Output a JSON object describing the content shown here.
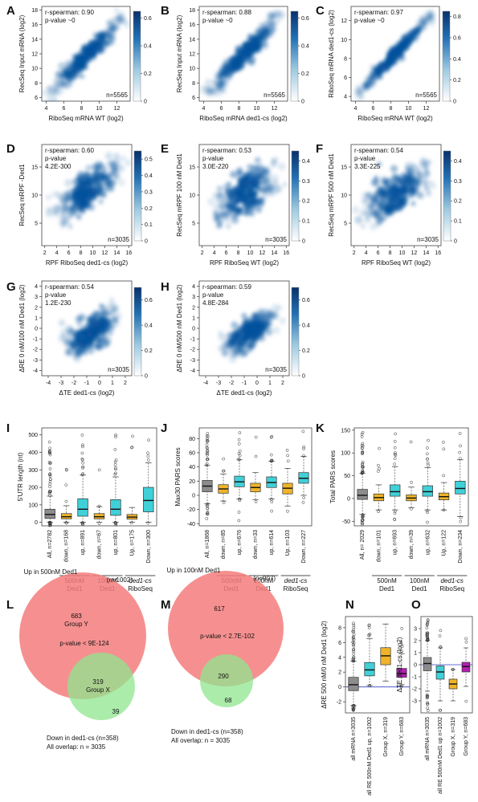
{
  "colors": {
    "density_low": "#ffffff",
    "density_high": "#08306b",
    "gray_box": "#8c8c8c",
    "orange_box": "#f0b429",
    "cyan_box": "#40d0d8",
    "magenta_box": "#b020b0",
    "venn_red": "#f47c7c",
    "venn_green": "#8fe68f",
    "group_label": "#2a3aa8",
    "ref_line": "#3040c0"
  },
  "chart_data": [
    {
      "panel": "A",
      "type": "heatmap",
      "xlabel": "RiboSeq mRNA",
      "xlabel_sub": "WT",
      "xlabel_suffix": "(log2)",
      "ylabel": "RecSeq Input mRNA (log2)",
      "xticks": [
        "4",
        "6",
        "8",
        "10",
        "12"
      ],
      "yticks": [
        "6",
        "8",
        "10",
        "12",
        "14",
        "16",
        "18"
      ],
      "xlim": [
        3.5,
        13.5
      ],
      "ylim": [
        5.5,
        18.5
      ],
      "annotation": [
        "r-spearman: 0.90",
        "p-value ~0"
      ],
      "n_label": "n=5565",
      "colorbar_ticks": [
        "0",
        "0.2",
        "0.4",
        "0.6"
      ],
      "colorbar_max": 0.65,
      "trend": {
        "x": [
          4.5,
          12.5
        ],
        "y": [
          6.5,
          17
        ],
        "spread": 0.9
      }
    },
    {
      "panel": "B",
      "type": "heatmap",
      "xlabel": "RiboSeq mRNA",
      "xlabel_sub": "ded1-cs",
      "xlabel_suffix": "(log2)",
      "ylabel": "RecSeq Input mRNA (log2)",
      "xticks": [
        "4",
        "6",
        "8",
        "10",
        "12"
      ],
      "yticks": [
        "6",
        "8",
        "10",
        "12",
        "14",
        "16",
        "18"
      ],
      "xlim": [
        3.5,
        13.5
      ],
      "ylim": [
        5.5,
        18.5
      ],
      "annotation": [
        "r-spearman: 0.88",
        "p-value ~0"
      ],
      "n_label": "n=5565",
      "colorbar_ticks": [
        "0",
        "0.2",
        "0.4",
        "0.6"
      ],
      "colorbar_max": 0.65,
      "trend": {
        "x": [
          4.5,
          12.5
        ],
        "y": [
          6.5,
          17
        ],
        "spread": 1.0
      }
    },
    {
      "panel": "C",
      "type": "heatmap",
      "xlabel": "RiboSeq mRNA",
      "xlabel_sub": "WT",
      "xlabel_suffix": "(log2)",
      "ylabel": "RiboSeq mRNA ded1-cs (log2)",
      "xticks": [
        "4",
        "6",
        "8",
        "10",
        "12"
      ],
      "yticks": [
        "4",
        "6",
        "8",
        "10",
        "12"
      ],
      "xlim": [
        3.5,
        13.5
      ],
      "ylim": [
        3.5,
        13.5
      ],
      "annotation": [
        "r-spearman: 0.97",
        "p-value ~0"
      ],
      "n_label": "n=5565",
      "colorbar_ticks": [
        "0",
        "0.2",
        "0.4",
        "0.6",
        "0.8"
      ],
      "colorbar_max": 0.85,
      "trend": {
        "x": [
          4.5,
          12.5
        ],
        "y": [
          4.5,
          12.5
        ],
        "spread": 0.45
      }
    },
    {
      "panel": "D",
      "type": "heatmap",
      "xlabel": "RPF RiboSeq ded1-cs (log2)",
      "ylabel": "RecSeq mRPF -Ded1",
      "xticks": [
        "2",
        "4",
        "6",
        "8",
        "10",
        "12",
        "14",
        "16"
      ],
      "yticks": [
        "5",
        "10",
        "15"
      ],
      "xlim": [
        1.5,
        16.5
      ],
      "ylim": [
        1,
        19
      ],
      "annotation": [
        "r-spearman: 0.60",
        "p-value",
        "4.2E-300"
      ],
      "n_label": "n=3035",
      "colorbar_ticks": [
        "0",
        "0.1",
        "0.2",
        "0.3",
        "0.4",
        "0.5"
      ],
      "colorbar_max": 0.55,
      "trend": {
        "x": [
          4,
          14
        ],
        "y": [
          7,
          14
        ],
        "spread": 2.6
      }
    },
    {
      "panel": "E",
      "type": "heatmap",
      "xlabel": "RPF RiboSeq WT (log2)",
      "ylabel": "RecSeq mRPF 100 nM Ded1",
      "xticks": [
        "2",
        "4",
        "6",
        "8",
        "10",
        "12",
        "14",
        "16"
      ],
      "yticks": [
        "5",
        "10",
        "15"
      ],
      "xlim": [
        1.5,
        16.5
      ],
      "ylim": [
        1,
        19
      ],
      "annotation": [
        "r-spearman: 0.53",
        "p-value",
        "3.0E-220"
      ],
      "n_label": "n=3035",
      "colorbar_ticks": [
        "0",
        "0.1",
        "0.2",
        "0.3",
        "0.4"
      ],
      "colorbar_max": 0.45,
      "trend": {
        "x": [
          4,
          14
        ],
        "y": [
          7,
          14
        ],
        "spread": 2.9
      }
    },
    {
      "panel": "F",
      "type": "heatmap",
      "xlabel": "RPF RiboSeq WT (log2)",
      "ylabel": "RecSeq mRPF 500 nM Ded1",
      "xticks": [
        "2",
        "4",
        "6",
        "8",
        "10",
        "12",
        "14",
        "16"
      ],
      "yticks": [
        "5",
        "10",
        "15"
      ],
      "xlim": [
        1.5,
        16.5
      ],
      "ylim": [
        1,
        19
      ],
      "annotation": [
        "r-spearman: 0.54",
        "p-value",
        "3.3E-225"
      ],
      "n_label": "n=3035",
      "colorbar_ticks": [
        "0",
        "0.1",
        "0.2",
        "0.3",
        "0.4"
      ],
      "colorbar_max": 0.45,
      "trend": {
        "x": [
          4,
          14
        ],
        "y": [
          7,
          14
        ],
        "spread": 2.9
      }
    },
    {
      "panel": "G",
      "type": "heatmap",
      "xlabel": "ΔTE ded1-cs (log2)",
      "ylabel": "ΔRE 0 nM/100 nM Ded1 (log2)",
      "xticks": [
        "-4",
        "-3",
        "-2",
        "-1",
        "0",
        "1",
        "2"
      ],
      "yticks": [
        "-4",
        "-3",
        "-2",
        "-1",
        "0",
        "1",
        "2",
        "3",
        "4"
      ],
      "xlim": [
        -4.5,
        2.5
      ],
      "ylim": [
        -4.5,
        4.5
      ],
      "annotation": [
        "r-spearman: 0.54",
        "p-value",
        "1.2E-230"
      ],
      "n_label": "n=3035",
      "colorbar_ticks": [
        "0",
        "0.2",
        "0.4",
        "0.6"
      ],
      "colorbar_max": 0.7,
      "trend": {
        "x": [
          -2.5,
          1.2
        ],
        "y": [
          -2,
          1.2
        ],
        "spread": 1.1
      }
    },
    {
      "panel": "H",
      "type": "heatmap",
      "xlabel": "ΔTE ded1-cs (log2)",
      "ylabel": "ΔRE 0 nM/500 nM Ded1 (log2)",
      "xticks": [
        "-4",
        "-3",
        "-2",
        "-1",
        "0",
        "1",
        "2"
      ],
      "yticks": [
        "-4",
        "-3",
        "-2",
        "-1",
        "0",
        "1",
        "2",
        "3",
        "4"
      ],
      "xlim": [
        -4.5,
        2.5
      ],
      "ylim": [
        -4.5,
        4.5
      ],
      "annotation": [
        "r-spearman: 0.59",
        "p-value",
        "4.8E-284"
      ],
      "n_label": "n=3035",
      "colorbar_ticks": [
        "0",
        "0.2",
        "0.4",
        "0.6"
      ],
      "colorbar_max": 0.7,
      "trend": {
        "x": [
          -2.5,
          1.2
        ],
        "y": [
          -2,
          1.2
        ],
        "spread": 1.0
      }
    },
    {
      "panel": "I",
      "type": "box",
      "ylabel": "5'UTR length (nt)",
      "ylim": [
        -20,
        540
      ],
      "yticks": [
        "0",
        "100",
        "200",
        "300",
        "400",
        "500"
      ],
      "boxes": [
        {
          "label": "All, n=2782",
          "color": "gray",
          "q1": 22,
          "med": 45,
          "q3": 75,
          "lo": 0,
          "hi": 150,
          "outliers": 40
        },
        {
          "label": "down, n=168",
          "color": "orange",
          "q1": 20,
          "med": 32,
          "q3": 50,
          "lo": 0,
          "hi": 95,
          "outliers": 6
        },
        {
          "label": "up, n=891",
          "color": "cyan",
          "q1": 35,
          "med": 75,
          "q3": 135,
          "lo": 0,
          "hi": 270,
          "outliers": 16
        },
        {
          "label": "down, n=67",
          "color": "orange",
          "q1": 20,
          "med": 32,
          "q3": 50,
          "lo": 0,
          "hi": 90,
          "outliers": 3
        },
        {
          "label": "up, n=801",
          "color": "cyan",
          "q1": 40,
          "med": 75,
          "q3": 130,
          "lo": 0,
          "hi": 260,
          "outliers": 15
        },
        {
          "label": "Up, n=175",
          "color": "orange",
          "q1": 18,
          "med": 30,
          "q3": 45,
          "lo": 0,
          "hi": 85,
          "outliers": 4
        },
        {
          "label": "Down, n=300",
          "color": "cyan",
          "q1": 60,
          "med": 125,
          "q3": 200,
          "lo": 0,
          "hi": 340,
          "outliers": 5
        }
      ],
      "groups": [
        {
          "line1": "500nM",
          "line2": "Ded1",
          "from": 1,
          "to": 2
        },
        {
          "line1": "100nM",
          "line2": "Ded1",
          "from": 3,
          "to": 4
        },
        {
          "line1": "ded1-cs",
          "line2": "RiboSeq",
          "from": 5,
          "to": 6
        }
      ]
    },
    {
      "panel": "J",
      "type": "box",
      "ylabel": "Max30 PARS scores",
      "ylim": [
        -43,
        95
      ],
      "yticks": [
        "-40",
        "-20",
        "0",
        "20",
        "40",
        "60",
        "80"
      ],
      "boxes": [
        {
          "label": "All, n=1868",
          "color": "gray",
          "q1": 5,
          "med": 13,
          "q3": 21,
          "lo": -12,
          "hi": 42,
          "outliers": 30
        },
        {
          "label": "down, n=85",
          "color": "orange",
          "q1": 3,
          "med": 9,
          "q3": 15,
          "lo": -8,
          "hi": 30,
          "outliers": 4
        },
        {
          "label": "up, n=676",
          "color": "cyan",
          "q1": 12,
          "med": 19,
          "q3": 27,
          "lo": -5,
          "hi": 50,
          "outliers": 12
        },
        {
          "label": "down, n=33",
          "color": "orange",
          "q1": 5,
          "med": 11,
          "q3": 17,
          "lo": -6,
          "hi": 32,
          "outliers": 3
        },
        {
          "label": "up, n=614",
          "color": "cyan",
          "q1": 11,
          "med": 18,
          "q3": 26,
          "lo": -5,
          "hi": 48,
          "outliers": 10
        },
        {
          "label": "Up, n=103",
          "color": "orange",
          "q1": 2,
          "med": 10,
          "q3": 17,
          "lo": -15,
          "hi": 38,
          "outliers": 4
        },
        {
          "label": "Down, n=227",
          "color": "cyan",
          "q1": 17,
          "med": 24,
          "q3": 32,
          "lo": 0,
          "hi": 55,
          "outliers": 6
        }
      ],
      "groups": [
        {
          "line1": "500nM",
          "line2": "Ded1",
          "from": 1,
          "to": 2
        },
        {
          "line1": "100nM",
          "line2": "Ded1",
          "from": 3,
          "to": 4
        },
        {
          "line1": "ded1-cs",
          "line2": "RiboSeq",
          "from": 5,
          "to": 6
        }
      ]
    },
    {
      "panel": "K",
      "type": "box",
      "ylabel": "Total PARS scores",
      "ylim": [
        -60,
        155
      ],
      "yticks": [
        "-50",
        "0",
        "50",
        "100",
        "150"
      ],
      "boxes": [
        {
          "label": "All, n= 2029",
          "color": "gray",
          "q1": -2,
          "med": 7,
          "q3": 20,
          "lo": -35,
          "hi": 55,
          "outliers": 40
        },
        {
          "label": "down, n=101",
          "color": "orange",
          "q1": -5,
          "med": 2,
          "q3": 10,
          "lo": -25,
          "hi": 30,
          "outliers": 5
        },
        {
          "label": "up, n=693",
          "color": "cyan",
          "q1": 5,
          "med": 15,
          "q3": 30,
          "lo": -25,
          "hi": 70,
          "outliers": 12
        },
        {
          "label": "down, n=39",
          "color": "orange",
          "q1": -5,
          "med": 1,
          "q3": 8,
          "lo": -20,
          "hi": 25,
          "outliers": 3
        },
        {
          "label": "up, n=632",
          "color": "cyan",
          "q1": 5,
          "med": 15,
          "q3": 28,
          "lo": -25,
          "hi": 68,
          "outliers": 10
        },
        {
          "label": "Up, n=122",
          "color": "orange",
          "q1": -3,
          "med": 4,
          "q3": 12,
          "lo": -25,
          "hi": 35,
          "outliers": 4
        },
        {
          "label": "Down, n=234",
          "color": "cyan",
          "q1": 10,
          "med": 22,
          "q3": 38,
          "lo": -40,
          "hi": 85,
          "outliers": 6
        }
      ],
      "groups": [
        {
          "line1": "500nM",
          "line2": "Ded1",
          "from": 1,
          "to": 2
        },
        {
          "line1": "100nM",
          "line2": "Ded1",
          "from": 3,
          "to": 4
        },
        {
          "line1": "ded1-cs",
          "line2": "RiboSeq",
          "from": 5,
          "to": 6
        }
      ]
    },
    {
      "panel": "L",
      "type": "venn",
      "top_label": "Up in 500nM Ded1",
      "top_n": "(n=1002)",
      "only_a": 683,
      "overlap": 319,
      "only_b": 39,
      "group_a_label": "Group Y",
      "group_b_label": "Group X",
      "pvalue": "p-value < 9E-124",
      "bottom_label": "Down in ded1-cs (n=358)",
      "all_overlap": "All overlap: n = 3035"
    },
    {
      "panel": "M",
      "type": "venn",
      "top_label": "Up in 100nM Ded1",
      "top_n": "(n=907)",
      "only_a": 617,
      "overlap": 290,
      "only_b": 68,
      "pvalue": "p-value < 2.7E-102",
      "bottom_label": "Down in ded1-cs (n=358)",
      "all_overlap": "All overlap: n = 3035"
    },
    {
      "panel": "N",
      "type": "box",
      "ylabel": "ΔRE 500 nM/0 nM Ded1 (log2)",
      "ylim": [
        -3.5,
        9.5
      ],
      "yticks": [
        "-2",
        "0",
        "2",
        "4",
        "6",
        "8"
      ],
      "hline": 0,
      "boxes": [
        {
          "label": "all mRNA n=3035",
          "color": "gray",
          "q1": -0.5,
          "med": 0.3,
          "q3": 1.3,
          "lo": -2.5,
          "hi": 3.5,
          "outliers": 40
        },
        {
          "label": "all RE 500nM Ded1 up, n=1002",
          "color": "cyan",
          "q1": 1.5,
          "med": 2.3,
          "q3": 3.3,
          "lo": 0.2,
          "hi": 6.5,
          "outliers": 8
        },
        {
          "label": "Group X, n=319",
          "color": "orange",
          "q1": 3.0,
          "med": 4.2,
          "q3": 5.3,
          "lo": 0.8,
          "hi": 8.5,
          "outliers": 0
        },
        {
          "label": "Group Y, n=683",
          "color": "magenta",
          "q1": 1.3,
          "med": 1.8,
          "q3": 2.5,
          "lo": 0.3,
          "hi": 4.5,
          "outliers": 6
        }
      ]
    },
    {
      "panel": "O",
      "type": "box",
      "ylabel": "ΔTE ded1-cs (log2)",
      "ylim": [
        -4,
        4
      ],
      "yticks": [
        "-3",
        "-2",
        "-1",
        "0",
        "1",
        "2",
        "3"
      ],
      "hline": 0,
      "boxes": [
        {
          "label": "all mRNA n=3035",
          "color": "gray",
          "q1": -0.5,
          "med": 0.1,
          "q3": 0.6,
          "lo": -2.2,
          "hi": 2.0,
          "outliers": 35
        },
        {
          "label": "all RE 500nM Ded1 up n=1002",
          "color": "cyan",
          "q1": -1.2,
          "med": -0.6,
          "q3": -0.1,
          "lo": -3.0,
          "hi": 1.4,
          "outliers": 6
        },
        {
          "label": "Group X, n=319",
          "color": "orange",
          "q1": -2.0,
          "med": -1.6,
          "q3": -1.2,
          "lo": -3.0,
          "hi": -0.4,
          "outliers": 2
        },
        {
          "label": "Group Y, n=683",
          "color": "magenta",
          "q1": -0.6,
          "med": -0.15,
          "q3": 0.2,
          "lo": -1.8,
          "hi": 1.4,
          "outliers": 3
        }
      ]
    }
  ]
}
